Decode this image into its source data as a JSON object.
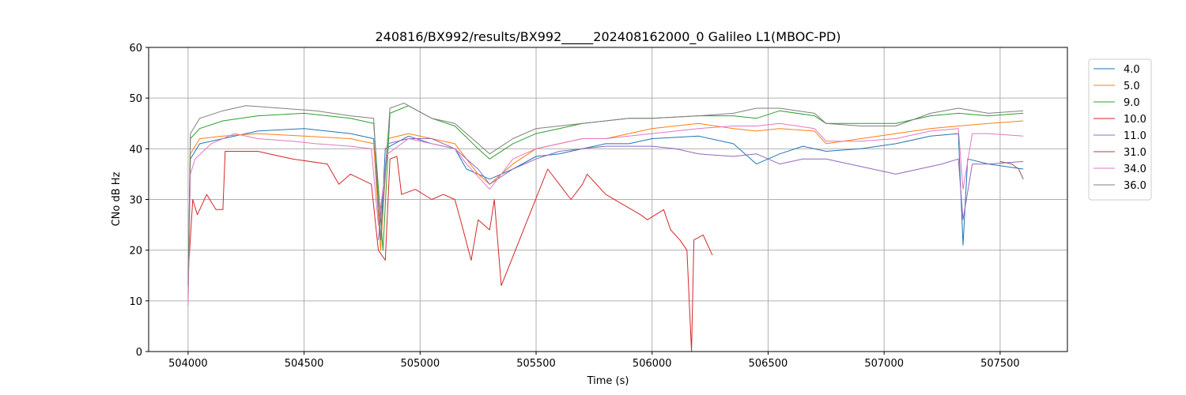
{
  "chart_data": {
    "type": "line",
    "title": "240816/BX992/results/BX992_____202408162000_0 Galileo L1(MBOC-PD)",
    "xlabel": "Time (s)",
    "ylabel": "CNo dB Hz",
    "xlim": [
      503830,
      507790
    ],
    "ylim": [
      0,
      60
    ],
    "xticks": [
      504000,
      504500,
      505000,
      505500,
      506000,
      506500,
      507000,
      507500
    ],
    "yticks": [
      0,
      10,
      20,
      30,
      40,
      50,
      60
    ],
    "grid": true,
    "legend_position": "top-right outside",
    "series": [
      {
        "name": "4.0",
        "color": "#1f77b4",
        "points": [
          [
            504000,
            10
          ],
          [
            504010,
            38
          ],
          [
            504050,
            41
          ],
          [
            504150,
            42
          ],
          [
            504300,
            43.5
          ],
          [
            504500,
            44
          ],
          [
            504700,
            43
          ],
          [
            504800,
            42
          ],
          [
            504830,
            22
          ],
          [
            504850,
            40
          ],
          [
            504950,
            42.5
          ],
          [
            505050,
            41
          ],
          [
            505150,
            40
          ],
          [
            505200,
            36
          ],
          [
            505300,
            34
          ],
          [
            505400,
            36
          ],
          [
            505500,
            38.5
          ],
          [
            505600,
            39
          ],
          [
            505700,
            40
          ],
          [
            505800,
            41
          ],
          [
            505900,
            41
          ],
          [
            506000,
            42
          ],
          [
            506200,
            42.5
          ],
          [
            506350,
            41
          ],
          [
            506450,
            37
          ],
          [
            506550,
            39
          ],
          [
            506650,
            40.5
          ],
          [
            506750,
            39.5
          ],
          [
            506900,
            40
          ],
          [
            507050,
            41
          ],
          [
            507200,
            42.5
          ],
          [
            507320,
            43
          ],
          [
            507340,
            21
          ],
          [
            507360,
            38
          ],
          [
            507450,
            37
          ],
          [
            507600,
            36
          ]
        ]
      },
      {
        "name": "5.0",
        "color": "#ff7f0e",
        "points": [
          [
            504000,
            12
          ],
          [
            504010,
            39
          ],
          [
            504050,
            42
          ],
          [
            504150,
            42.5
          ],
          [
            504300,
            43
          ],
          [
            504500,
            42.5
          ],
          [
            504700,
            42
          ],
          [
            504800,
            41
          ],
          [
            504830,
            20
          ],
          [
            504860,
            42
          ],
          [
            504950,
            43
          ],
          [
            505050,
            42
          ],
          [
            505150,
            41
          ],
          [
            505250,
            35
          ],
          [
            505300,
            33
          ],
          [
            505400,
            37
          ],
          [
            505500,
            40
          ],
          [
            505600,
            41
          ],
          [
            505700,
            42
          ],
          [
            505800,
            42
          ],
          [
            505900,
            43
          ],
          [
            506000,
            44
          ],
          [
            506200,
            45
          ],
          [
            506350,
            44
          ],
          [
            506450,
            43.5
          ],
          [
            506550,
            44
          ],
          [
            506700,
            43.5
          ],
          [
            506750,
            41
          ],
          [
            506900,
            42
          ],
          [
            507050,
            43
          ],
          [
            507200,
            44
          ],
          [
            507320,
            44.5
          ],
          [
            507450,
            45
          ],
          [
            507600,
            45.5
          ]
        ]
      },
      {
        "name": "9.0",
        "color": "#2ca02c",
        "points": [
          [
            504000,
            14
          ],
          [
            504010,
            42
          ],
          [
            504050,
            44
          ],
          [
            504150,
            45.5
          ],
          [
            504300,
            46.5
          ],
          [
            504500,
            47
          ],
          [
            504700,
            46
          ],
          [
            504800,
            45
          ],
          [
            504840,
            20
          ],
          [
            504870,
            47
          ],
          [
            504950,
            48.5
          ],
          [
            505050,
            46
          ],
          [
            505150,
            44.5
          ],
          [
            505250,
            40
          ],
          [
            505300,
            38
          ],
          [
            505400,
            41
          ],
          [
            505500,
            43
          ],
          [
            505600,
            44
          ],
          [
            505700,
            45
          ],
          [
            505800,
            45.5
          ],
          [
            505900,
            46
          ],
          [
            506000,
            46
          ],
          [
            506200,
            46.5
          ],
          [
            506350,
            46.5
          ],
          [
            506450,
            46
          ],
          [
            506550,
            47.5
          ],
          [
            506700,
            46.5
          ],
          [
            506750,
            45
          ],
          [
            506900,
            45
          ],
          [
            507050,
            45
          ],
          [
            507200,
            46.5
          ],
          [
            507320,
            47
          ],
          [
            507450,
            46.5
          ],
          [
            507600,
            47
          ]
        ]
      },
      {
        "name": "10.0",
        "color": "#d62728",
        "points": [
          [
            504000,
            15
          ],
          [
            504020,
            30
          ],
          [
            504040,
            27
          ],
          [
            504080,
            31
          ],
          [
            504120,
            28
          ],
          [
            504150,
            28
          ],
          [
            504160,
            39.5
          ],
          [
            504300,
            39.5
          ],
          [
            504450,
            38
          ],
          [
            504600,
            37
          ],
          [
            504650,
            33
          ],
          [
            504700,
            35
          ],
          [
            504790,
            33
          ],
          [
            504820,
            20
          ],
          [
            504850,
            18
          ],
          [
            504870,
            38
          ],
          [
            504900,
            38.5
          ],
          [
            504920,
            31
          ],
          [
            504980,
            32
          ],
          [
            505050,
            30
          ],
          [
            505100,
            31
          ],
          [
            505150,
            30
          ],
          [
            505180,
            25
          ],
          [
            505220,
            18
          ],
          [
            505250,
            26
          ],
          [
            505300,
            24
          ],
          [
            505320,
            30
          ],
          [
            505350,
            13
          ],
          [
            505550,
            36
          ],
          [
            505600,
            33
          ],
          [
            505650,
            30
          ],
          [
            505700,
            33
          ],
          [
            505720,
            35
          ],
          [
            505800,
            31
          ],
          [
            505950,
            27
          ],
          [
            505980,
            26
          ],
          [
            506050,
            28
          ],
          [
            506080,
            24
          ],
          [
            506120,
            22
          ],
          [
            506150,
            20
          ],
          [
            506170,
            0
          ],
          [
            506180,
            22
          ],
          [
            506220,
            23
          ],
          [
            506260,
            19
          ]
        ]
      },
      {
        "name": "11.0",
        "color": "#9467bd",
        "points": [
          [
            504820,
            22
          ],
          [
            504860,
            41
          ],
          [
            504950,
            42
          ],
          [
            505050,
            42
          ],
          [
            505150,
            40
          ],
          [
            505250,
            36
          ],
          [
            505300,
            33
          ],
          [
            505400,
            36
          ],
          [
            505500,
            38
          ],
          [
            505600,
            39.5
          ],
          [
            505700,
            40
          ],
          [
            505800,
            40.5
          ],
          [
            505900,
            40.5
          ],
          [
            506000,
            40.5
          ],
          [
            506100,
            40
          ],
          [
            506200,
            39
          ],
          [
            506350,
            38.5
          ],
          [
            506450,
            39
          ],
          [
            506550,
            37
          ],
          [
            506650,
            38
          ],
          [
            506750,
            38
          ],
          [
            506900,
            36.5
          ],
          [
            507050,
            35
          ],
          [
            507150,
            36
          ],
          [
            507250,
            37
          ],
          [
            507320,
            38
          ],
          [
            507340,
            26
          ],
          [
            507380,
            37
          ],
          [
            507450,
            37
          ],
          [
            507600,
            37.5
          ]
        ]
      },
      {
        "name": "31.0",
        "color": "#8c564b",
        "points": [
          [
            507500,
            37.5
          ],
          [
            507550,
            37
          ],
          [
            507580,
            36
          ],
          [
            507600,
            34
          ]
        ]
      },
      {
        "name": "34.0",
        "color": "#e377c2",
        "points": [
          [
            504000,
            9
          ],
          [
            504010,
            35
          ],
          [
            504030,
            38
          ],
          [
            504100,
            41
          ],
          [
            504200,
            43
          ],
          [
            504300,
            42
          ],
          [
            504450,
            41.5
          ],
          [
            504550,
            41
          ],
          [
            504700,
            40.5
          ],
          [
            504790,
            40
          ],
          [
            504820,
            25
          ],
          [
            504860,
            39
          ],
          [
            504950,
            42
          ],
          [
            505050,
            41
          ],
          [
            505150,
            40
          ],
          [
            505200,
            37
          ],
          [
            505300,
            32
          ],
          [
            505400,
            38
          ],
          [
            505500,
            40
          ],
          [
            505600,
            41
          ],
          [
            505700,
            42
          ],
          [
            505800,
            42
          ],
          [
            505900,
            42.5
          ],
          [
            506000,
            43
          ],
          [
            506200,
            44
          ],
          [
            506350,
            44.5
          ],
          [
            506450,
            44.5
          ],
          [
            506550,
            45
          ],
          [
            506700,
            44
          ],
          [
            506750,
            41.5
          ],
          [
            506900,
            41.5
          ],
          [
            507050,
            42
          ],
          [
            507200,
            43.5
          ],
          [
            507320,
            44
          ],
          [
            507340,
            32
          ],
          [
            507380,
            43
          ],
          [
            507450,
            43
          ],
          [
            507600,
            42.5
          ]
        ]
      },
      {
        "name": "36.0",
        "color": "#7f7f7f",
        "points": [
          [
            504000,
            13
          ],
          [
            504010,
            43
          ],
          [
            504050,
            46
          ],
          [
            504150,
            47.5
          ],
          [
            504250,
            48.5
          ],
          [
            504400,
            48
          ],
          [
            504550,
            47.5
          ],
          [
            504700,
            46.5
          ],
          [
            504800,
            46
          ],
          [
            504830,
            22
          ],
          [
            504870,
            48
          ],
          [
            504930,
            49
          ],
          [
            505050,
            46
          ],
          [
            505150,
            45
          ],
          [
            505250,
            41
          ],
          [
            505300,
            39
          ],
          [
            505400,
            42
          ],
          [
            505500,
            44
          ],
          [
            505600,
            44.5
          ],
          [
            505700,
            45
          ],
          [
            505800,
            45.5
          ],
          [
            505900,
            46
          ],
          [
            506000,
            46
          ],
          [
            506200,
            46.5
          ],
          [
            506350,
            47
          ],
          [
            506450,
            48
          ],
          [
            506550,
            48
          ],
          [
            506700,
            47
          ],
          [
            506750,
            45
          ],
          [
            506900,
            44.5
          ],
          [
            507050,
            44.5
          ],
          [
            507200,
            47
          ],
          [
            507320,
            48
          ],
          [
            507450,
            47
          ],
          [
            507600,
            47.5
          ]
        ]
      }
    ]
  }
}
